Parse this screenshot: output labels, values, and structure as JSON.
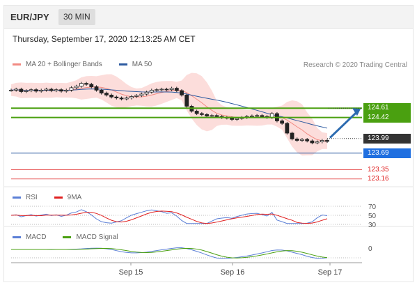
{
  "header": {
    "symbol": "EUR/JPY",
    "timeframe": "30 MIN"
  },
  "datetime": "Thursday, September 17, 2020 12:13:25 AM CET",
  "credit": "Research © 2020 Trading Central",
  "legend_main": [
    {
      "label": "MA 20 + Bollinger Bands",
      "color": "#f28a82"
    },
    {
      "label": "MA 50",
      "color": "#2c5aa0"
    }
  ],
  "legend_rsi": [
    {
      "label": "RSI",
      "color": "#5b7fd6"
    },
    {
      "label": "9MA",
      "color": "#e02020"
    }
  ],
  "legend_macd": [
    {
      "label": "MACD",
      "color": "#5b7fd6"
    },
    {
      "label": "MACD Signal",
      "color": "#4aa010"
    }
  ],
  "colors": {
    "resistance": "#4aa010",
    "support": "#2c5aa0",
    "target_red": "#e02020",
    "last_price": "#333333",
    "arrow": "#2c6bb0",
    "candle": "#222222",
    "bollinger_fill": "#fbd5d2"
  },
  "price_tags": [
    {
      "value": "124.61",
      "bg": "#4aa010"
    },
    {
      "value": "124.42",
      "bg": "#4aa010"
    },
    {
      "value": "123.99",
      "bg": "#333333"
    },
    {
      "value": "123.69",
      "bg": "#1f6fe0"
    },
    {
      "value": "123.35",
      "bg": "transparent",
      "fg": "#e02020"
    },
    {
      "value": "123.16",
      "bg": "transparent",
      "fg": "#e02020"
    }
  ],
  "rsi_levels": [
    "70",
    "50",
    "30"
  ],
  "macd_level": "0",
  "x_labels": [
    "Sep 15",
    "Sep 16",
    "Sep 17"
  ],
  "chart_data": {
    "type": "candlestick",
    "symbol": "EUR/JPY",
    "timeframe": "30 MIN",
    "ylim": [
      123.0,
      125.4
    ],
    "horizontal_levels": [
      124.61,
      124.42,
      123.69,
      123.35,
      123.16
    ],
    "last_price": 123.99,
    "close_path": [
      124.98,
      125.0,
      124.95,
      124.97,
      124.99,
      124.96,
      124.98,
      125.0,
      124.97,
      124.99,
      124.96,
      124.98,
      125.03,
      125.06,
      125.12,
      125.1,
      125.05,
      124.98,
      124.92,
      124.88,
      124.84,
      124.82,
      124.8,
      124.82,
      124.85,
      124.87,
      124.9,
      124.94,
      124.98,
      124.99,
      125.0,
      124.99,
      125.02,
      124.97,
      124.88,
      124.65,
      124.55,
      124.5,
      124.48,
      124.45,
      124.46,
      124.44,
      124.42,
      124.41,
      124.38,
      124.4,
      124.42,
      124.44,
      124.45,
      124.46,
      124.44,
      124.42,
      124.5,
      124.35,
      124.3,
      124.1,
      123.98,
      123.95,
      123.97,
      123.94,
      123.9,
      123.92,
      123.95,
      123.93
    ],
    "rsi_levels": [
      70,
      50,
      30
    ],
    "x_labels": [
      "Sep 15",
      "Sep 16",
      "Sep 17"
    ]
  }
}
